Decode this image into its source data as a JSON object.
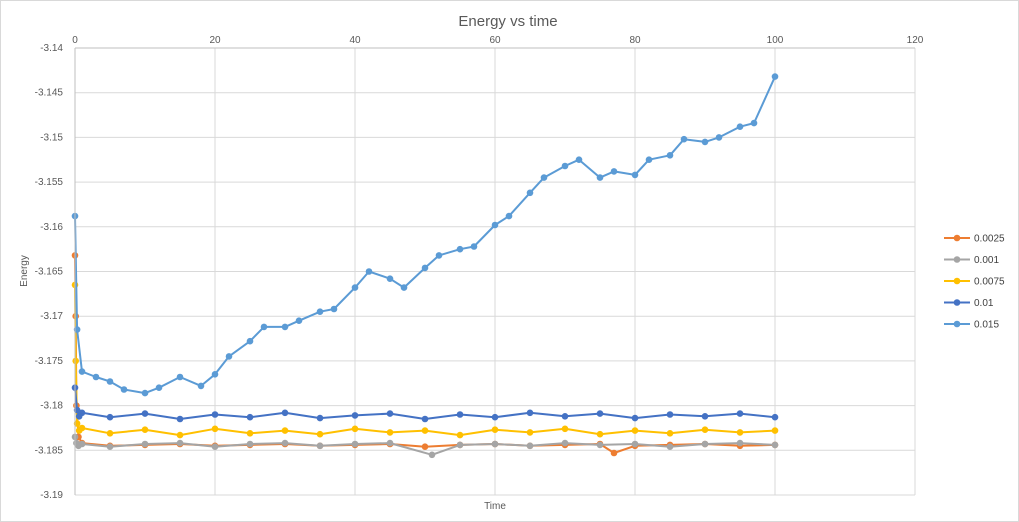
{
  "chart_data": {
    "type": "line",
    "title": "Energy vs time",
    "xlabel": "Time",
    "ylabel": "Energy",
    "xlim": [
      0,
      120
    ],
    "ylim": [
      -3.19,
      -3.14
    ],
    "x_ticks": [
      0,
      20,
      40,
      60,
      80,
      100,
      120
    ],
    "y_ticks": [
      -3.14,
      -3.145,
      -3.15,
      -3.155,
      -3.16,
      -3.165,
      -3.17,
      -3.175,
      -3.18,
      -3.185,
      -3.19
    ],
    "x_tick_labels": [
      "0",
      "20",
      "40",
      "60",
      "80",
      "100",
      "120"
    ],
    "y_tick_labels": [
      "-3.14",
      "-3.145",
      "-3.15",
      "-3.155",
      "-3.16",
      "-3.165",
      "-3.17",
      "-3.175",
      "-3.18",
      "-3.185",
      "-3.19"
    ],
    "grid": true,
    "x_axis_position": "top",
    "legend": "right",
    "series": [
      {
        "name": "0.0025",
        "color": "#ED7D31",
        "x": [
          0,
          0.1,
          0.2,
          0.5,
          1,
          5,
          10,
          15,
          20,
          25,
          30,
          35,
          40,
          45,
          50,
          55,
          60,
          65,
          70,
          75,
          77,
          80,
          85,
          90,
          95,
          100
        ],
        "y": [
          -3.1632,
          -3.17,
          -3.18,
          -3.1835,
          -3.1842,
          -3.1845,
          -3.1844,
          -3.1843,
          -3.1845,
          -3.1844,
          -3.1843,
          -3.1845,
          -3.1844,
          -3.1843,
          -3.1846,
          -3.1844,
          -3.1843,
          -3.1845,
          -3.1844,
          -3.1843,
          -3.1853,
          -3.1845,
          -3.1844,
          -3.1843,
          -3.1845,
          -3.1844
        ]
      },
      {
        "name": "0.001",
        "color": "#A5A5A5",
        "x": [
          0,
          0.2,
          0.5,
          1,
          5,
          10,
          15,
          20,
          25,
          30,
          35,
          40,
          45,
          51,
          55,
          60,
          65,
          70,
          75,
          80,
          85,
          90,
          95,
          100
        ],
        "y": [
          -3.1835,
          -3.1842,
          -3.1845,
          -3.1843,
          -3.1846,
          -3.1843,
          -3.1842,
          -3.1846,
          -3.1843,
          -3.1842,
          -3.1845,
          -3.1843,
          -3.1842,
          -3.1855,
          -3.1844,
          -3.1843,
          -3.1845,
          -3.1842,
          -3.1844,
          -3.1843,
          -3.1846,
          -3.1843,
          -3.1842,
          -3.1844
        ]
      },
      {
        "name": "0.0075",
        "color": "#FFC000",
        "x": [
          0,
          0.1,
          0.3,
          0.6,
          1,
          5,
          10,
          15,
          20,
          25,
          30,
          35,
          40,
          45,
          50,
          55,
          60,
          65,
          70,
          75,
          80,
          85,
          90,
          95,
          100
        ],
        "y": [
          -3.1665,
          -3.175,
          -3.182,
          -3.1828,
          -3.1825,
          -3.1831,
          -3.1827,
          -3.1833,
          -3.1826,
          -3.1831,
          -3.1828,
          -3.1832,
          -3.1826,
          -3.183,
          -3.1828,
          -3.1833,
          -3.1827,
          -3.183,
          -3.1826,
          -3.1832,
          -3.1828,
          -3.1831,
          -3.1827,
          -3.183,
          -3.1828
        ]
      },
      {
        "name": "0.01",
        "color": "#4472C4",
        "x": [
          0,
          0.3,
          0.6,
          1,
          5,
          10,
          15,
          20,
          25,
          30,
          35,
          40,
          45,
          50,
          55,
          60,
          65,
          70,
          75,
          80,
          85,
          90,
          95,
          100
        ],
        "y": [
          -3.178,
          -3.1805,
          -3.1812,
          -3.1808,
          -3.1813,
          -3.1809,
          -3.1815,
          -3.181,
          -3.1813,
          -3.1808,
          -3.1814,
          -3.1811,
          -3.1809,
          -3.1815,
          -3.181,
          -3.1813,
          -3.1808,
          -3.1812,
          -3.1809,
          -3.1814,
          -3.181,
          -3.1812,
          -3.1809,
          -3.1813
        ]
      },
      {
        "name": "0.015",
        "color": "#5B9BD5",
        "x": [
          0,
          0.3,
          1,
          3,
          5,
          7,
          10,
          12,
          15,
          18,
          20,
          22,
          25,
          27,
          30,
          32,
          35,
          37,
          40,
          42,
          45,
          47,
          50,
          52,
          55,
          57,
          60,
          62,
          65,
          67,
          70,
          72,
          75,
          77,
          80,
          82,
          85,
          87,
          90,
          92,
          95,
          97,
          100
        ],
        "y": [
          -3.1588,
          -3.1715,
          -3.1762,
          -3.1768,
          -3.1773,
          -3.1782,
          -3.1786,
          -3.178,
          -3.1768,
          -3.1778,
          -3.1765,
          -3.1745,
          -3.1728,
          -3.1712,
          -3.1712,
          -3.1705,
          -3.1695,
          -3.1692,
          -3.1668,
          -3.165,
          -3.1658,
          -3.1668,
          -3.1646,
          -3.1632,
          -3.1625,
          -3.1622,
          -3.1598,
          -3.1588,
          -3.1562,
          -3.1545,
          -3.1532,
          -3.1525,
          -3.1545,
          -3.1538,
          -3.1542,
          -3.1525,
          -3.152,
          -3.1502,
          -3.1505,
          -3.15,
          -3.1488,
          -3.1484,
          -3.1432
        ]
      }
    ]
  }
}
